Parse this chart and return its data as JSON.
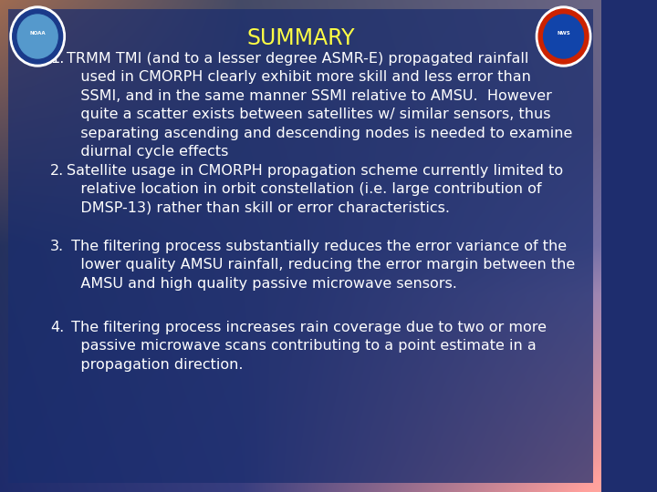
{
  "title": "SUMMARY",
  "title_color": "#ffff44",
  "title_fontsize": 17,
  "title_fontweight": "normal",
  "bg_color_left": "#1e2d6e",
  "bg_color_right": "#4a5fa0",
  "overlay_color": "#1a2d6e",
  "overlay_alpha": 0.72,
  "text_color": "#ffffff",
  "body_fontsize": 11.5,
  "items": [
    {
      "number": "1.",
      "text": "TRMM TMI (and to a lesser degree ASMR-E) propagated rainfall\n   used in CMORPH clearly exhibit more skill and less error than\n   SSMI, and in the same manner SSMI relative to AMSU.  However\n   quite a scatter exists between satellites w/ similar sensors, thus\n   separating ascending and descending nodes is needed to examine\n   diurnal cycle effects"
    },
    {
      "number": "2.",
      "text": "Satellite usage in CMORPH propagation scheme currently limited to\n   relative location in orbit constellation (i.e. large contribution of\n   DMSP-13) rather than skill or error characteristics."
    },
    {
      "number": "3.",
      "text": " The filtering process substantially reduces the error variance of the\n   lower quality AMSU rainfall, reducing the error margin between the\n   AMSU and high quality passive microwave sensors."
    },
    {
      "number": "4.",
      "text": " The filtering process increases rain coverage due to two or more\n   passive microwave scans contributing to a point estimate in a\n   propagation direction."
    }
  ]
}
